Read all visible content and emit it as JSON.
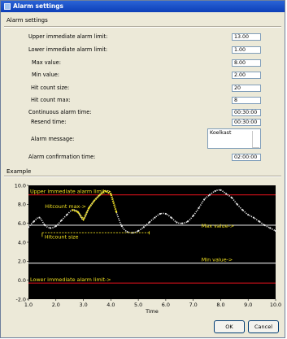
{
  "window": {
    "title": "Alarm settings"
  },
  "settings": {
    "group_title": "Alarm settings",
    "fields": [
      {
        "label": "Upper immediate alarm limit:",
        "value": "13.00"
      },
      {
        "label": "Lower immediate alarm limit:",
        "value": "1.00"
      },
      {
        "label": "Max value:",
        "value": "8.00"
      },
      {
        "label": "Min value:",
        "value": "2.00"
      },
      {
        "label": "Hit count size:",
        "value": "20"
      },
      {
        "label": "Hit count max:",
        "value": "8"
      },
      {
        "label": "Continuous alarm time:",
        "value": "00:30:00"
      },
      {
        "label": "Resend time:",
        "value": "00:30:00"
      }
    ],
    "message": {
      "label": "Alarm message:",
      "value": "Koelkast"
    },
    "confirmation": {
      "label": "Alarm confirmation time:",
      "value": "02:00:00"
    }
  },
  "example": {
    "group_title": "Example",
    "annotations": {
      "upper_limit": "Upper immediate alarm limit->",
      "hitcount_max": "Hitcount max->",
      "max_value": "Max value->",
      "hitcount_size": "Hitcount size",
      "min_value": "Min value->",
      "lower_limit": "Lower immediate alarm limit->"
    },
    "colors": {
      "background": "#000000",
      "curve": "#e6e6e6",
      "hit_segment": "#f0e020",
      "limit_line": "#d0101a",
      "value_line": "#e6e6e6",
      "annotation": "#f0e020"
    }
  },
  "chart_data": {
    "type": "line",
    "title": "",
    "xlabel": "Time",
    "ylabel": "",
    "xlim": [
      1.0,
      10.0
    ],
    "ylim": [
      -2.0,
      10.0
    ],
    "x_ticks": [
      "1.0",
      "2.0",
      "3.0",
      "4.0",
      "5.0",
      "6.0",
      "7.0",
      "8.0",
      "9.0",
      "10.0"
    ],
    "y_ticks": [
      "10.0",
      "8.0",
      "6.0",
      "4.0",
      "2.0",
      "0.0",
      "-2.0"
    ],
    "reference_lines": [
      {
        "name": "Upper immediate alarm limit",
        "y": 9.0
      },
      {
        "name": "Max value",
        "y": 5.8
      },
      {
        "name": "Min value",
        "y": 1.8
      },
      {
        "name": "Lower immediate alarm limit",
        "y": -0.3
      }
    ],
    "series": [
      {
        "x": [
          1.0,
          1.2,
          1.4,
          1.6,
          1.8,
          2.0,
          2.2,
          2.4,
          2.6,
          2.8,
          3.0,
          3.2,
          3.4,
          3.6,
          3.8,
          4.0,
          4.2,
          4.4,
          4.6,
          4.8,
          5.0,
          5.2,
          5.4,
          5.6,
          5.8,
          6.0,
          6.2,
          6.4,
          6.6,
          6.8,
          7.0,
          7.2,
          7.4,
          7.6,
          7.8,
          8.0,
          8.2,
          8.4,
          8.6,
          8.8,
          9.0,
          9.2,
          9.4,
          9.6,
          9.8,
          10.0
        ],
        "y": [
          5.6,
          6.2,
          6.6,
          5.8,
          5.5,
          5.7,
          6.3,
          6.9,
          7.4,
          7.2,
          6.4,
          7.6,
          8.4,
          9.0,
          9.4,
          9.1,
          7.2,
          5.7,
          5.1,
          5.0,
          5.2,
          5.6,
          6.1,
          6.6,
          7.0,
          7.0,
          6.6,
          6.1,
          6.0,
          6.2,
          6.8,
          7.6,
          8.5,
          9.0,
          9.4,
          9.5,
          9.1,
          8.7,
          8.0,
          7.4,
          6.9,
          6.6,
          6.2,
          5.8,
          5.5,
          5.2
        ]
      }
    ],
    "hit_segments": [
      {
        "x": [
          2.6,
          4.2
        ]
      }
    ],
    "hitcount_size_span": [
      1.5,
      5.4
    ]
  },
  "buttons": {
    "ok": "OK",
    "cancel": "Cancel"
  }
}
